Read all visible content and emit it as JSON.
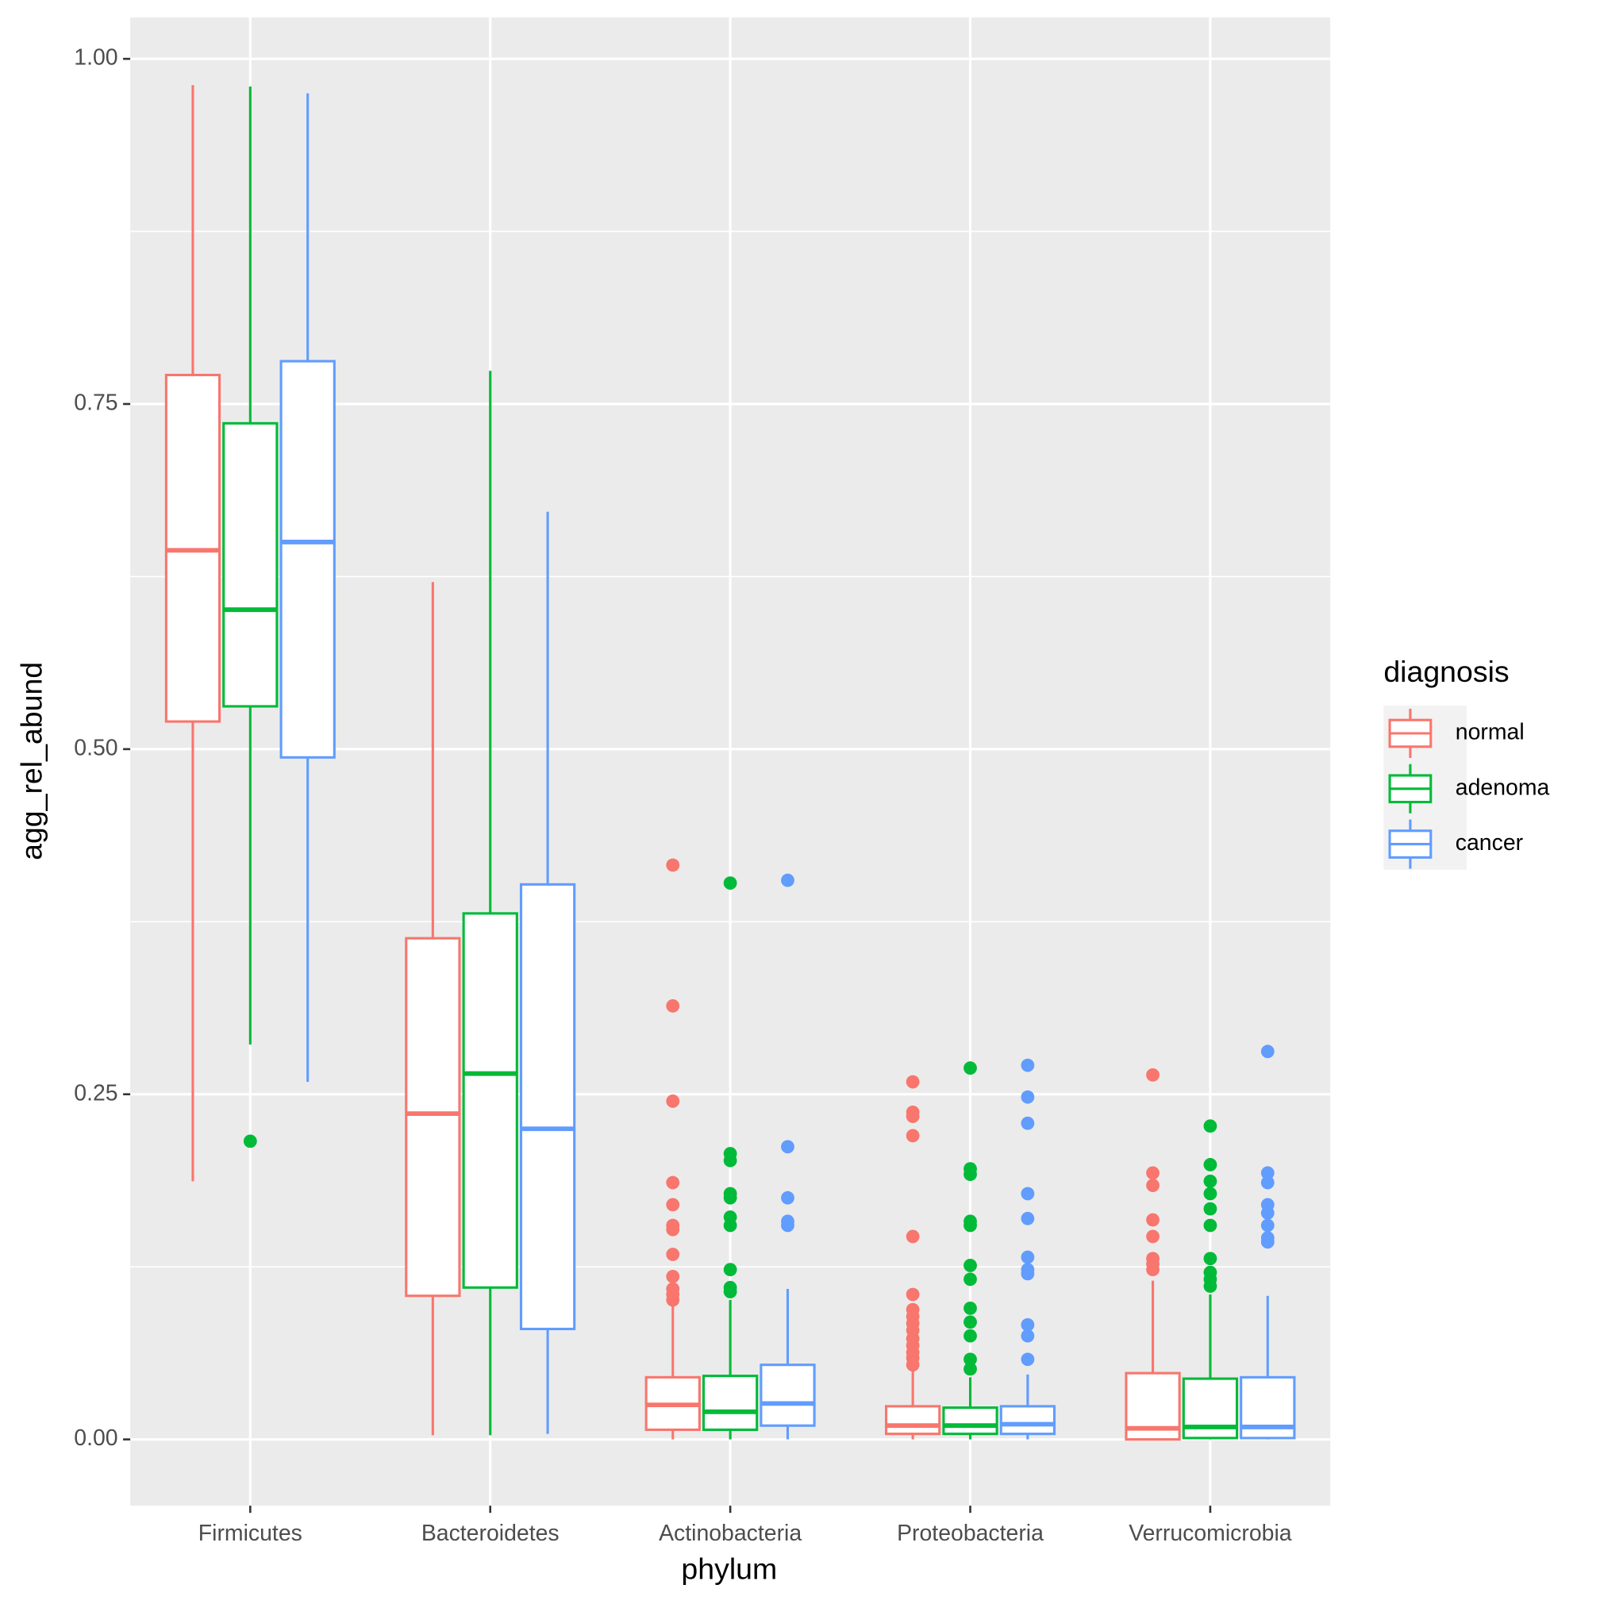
{
  "chart_data": {
    "type": "boxplot",
    "x_label": "phylum",
    "y_label": "agg_rel_abund",
    "legend_title": "diagnosis",
    "legend_position": "right",
    "grid": true,
    "categories": [
      "Firmicutes",
      "Bacteroidetes",
      "Actinobacteria",
      "Proteobacteria",
      "Verrucomicrobia"
    ],
    "ylim": [
      -0.048,
      1.03
    ],
    "yticks": [
      {
        "value": 0,
        "label": "0.00"
      },
      {
        "value": 0.25,
        "label": "0.25"
      },
      {
        "value": 0.5,
        "label": "0.50"
      },
      {
        "value": 0.75,
        "label": "0.75"
      },
      {
        "value": 1,
        "label": "1.00"
      }
    ],
    "series": [
      {
        "name": "normal",
        "color": "#F8766D",
        "boxes": [
          {
            "min": 0.187,
            "q1": 0.52,
            "median": 0.644,
            "q3": 0.771,
            "max": 0.981,
            "outliers": []
          },
          {
            "min": 0.003,
            "q1": 0.104,
            "median": 0.236,
            "q3": 0.363,
            "max": 0.621,
            "outliers": []
          },
          {
            "min": 0.0,
            "q1": 0.007,
            "median": 0.025,
            "q3": 0.045,
            "max": 0.097,
            "outliers": [
              0.416,
              0.314,
              0.245,
              0.186,
              0.17,
              0.155,
              0.152,
              0.134,
              0.118,
              0.109,
              0.105,
              0.101
            ]
          },
          {
            "min": 0.0,
            "q1": 0.004,
            "median": 0.01,
            "q3": 0.024,
            "max": 0.052,
            "outliers": [
              0.259,
              0.237,
              0.234,
              0.22,
              0.147,
              0.105,
              0.094,
              0.089,
              0.084,
              0.079,
              0.073,
              0.068,
              0.063,
              0.059,
              0.054
            ]
          },
          {
            "min": 0.0,
            "q1": 0.0,
            "median": 0.008,
            "q3": 0.048,
            "max": 0.115,
            "outliers": [
              0.264,
              0.193,
              0.184,
              0.159,
              0.147,
              0.131,
              0.127,
              0.123
            ]
          }
        ]
      },
      {
        "name": "adenoma",
        "color": "#00BA38",
        "boxes": [
          {
            "min": 0.286,
            "q1": 0.531,
            "median": 0.601,
            "q3": 0.736,
            "max": 0.98,
            "outliers": [
              0.216
            ]
          },
          {
            "min": 0.003,
            "q1": 0.11,
            "median": 0.265,
            "q3": 0.381,
            "max": 0.774,
            "outliers": []
          },
          {
            "min": 0.0,
            "q1": 0.007,
            "median": 0.02,
            "q3": 0.046,
            "max": 0.101,
            "outliers": [
              0.403,
              0.207,
              0.202,
              0.178,
              0.175,
              0.161,
              0.155,
              0.123,
              0.11,
              0.107
            ]
          },
          {
            "min": 0.0,
            "q1": 0.004,
            "median": 0.01,
            "q3": 0.023,
            "max": 0.045,
            "outliers": [
              0.269,
              0.196,
              0.192,
              0.158,
              0.155,
              0.126,
              0.116,
              0.095,
              0.085,
              0.075,
              0.058,
              0.051
            ]
          },
          {
            "min": 0.0,
            "q1": 0.001,
            "median": 0.009,
            "q3": 0.044,
            "max": 0.105,
            "outliers": [
              0.227,
              0.199,
              0.187,
              0.178,
              0.167,
              0.155,
              0.131,
              0.121,
              0.116,
              0.111
            ]
          }
        ]
      },
      {
        "name": "cancer",
        "color": "#619CFF",
        "boxes": [
          {
            "min": 0.259,
            "q1": 0.494,
            "median": 0.65,
            "q3": 0.781,
            "max": 0.975,
            "outliers": []
          },
          {
            "min": 0.004,
            "q1": 0.08,
            "median": 0.225,
            "q3": 0.402,
            "max": 0.672,
            "outliers": []
          },
          {
            "min": 0.0,
            "q1": 0.01,
            "median": 0.026,
            "q3": 0.054,
            "max": 0.109,
            "outliers": [
              0.405,
              0.212,
              0.175,
              0.158,
              0.155
            ]
          },
          {
            "min": 0.0,
            "q1": 0.004,
            "median": 0.011,
            "q3": 0.024,
            "max": 0.047,
            "outliers": [
              0.271,
              0.248,
              0.229,
              0.178,
              0.16,
              0.132,
              0.123,
              0.12,
              0.083,
              0.075,
              0.058
            ]
          },
          {
            "min": 0.0,
            "q1": 0.001,
            "median": 0.009,
            "q3": 0.045,
            "max": 0.104,
            "outliers": [
              0.281,
              0.193,
              0.186,
              0.17,
              0.164,
              0.155,
              0.146,
              0.143
            ]
          }
        ]
      }
    ]
  }
}
